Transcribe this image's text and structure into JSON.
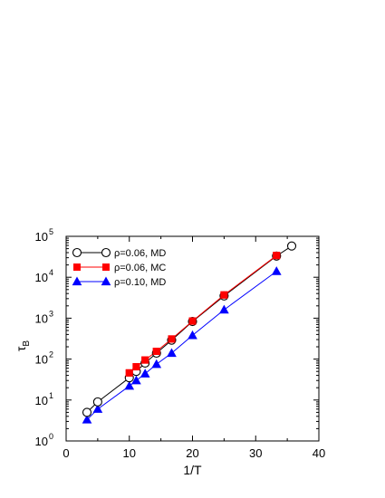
{
  "chart_data": {
    "type": "line",
    "title": "",
    "xlabel": "1/T",
    "ylabel_main": "τ",
    "ylabel_sub": "B",
    "xlim": [
      0,
      40
    ],
    "ylim": [
      1,
      100000
    ],
    "yscale": "log",
    "grid": false,
    "legend_position": "top-left",
    "x_ticks": [
      0,
      10,
      20,
      30,
      40
    ],
    "x_tick_labels": [
      "0",
      "10",
      "20",
      "30",
      "40"
    ],
    "y_ticks": [
      1,
      10,
      100,
      1000,
      10000,
      100000
    ],
    "y_tick_base": "10",
    "y_tick_exponents": [
      "0",
      "1",
      "2",
      "3",
      "4",
      "5"
    ],
    "series": [
      {
        "name": "ρ=0.06, MD",
        "color": "#000000",
        "marker": "open-circle",
        "x": [
          3.3,
          5.0,
          10.0,
          11.1,
          12.5,
          14.3,
          16.7,
          20.0,
          25.0,
          33.3,
          35.7
        ],
        "y": [
          5,
          9,
          35,
          50,
          80,
          140,
          290,
          830,
          3500,
          33000,
          58000
        ]
      },
      {
        "name": "ρ=0.06, MC",
        "color": "#ff0000",
        "marker": "filled-square",
        "x": [
          10.0,
          11.1,
          12.5,
          14.3,
          16.7,
          20.0,
          25.0,
          33.3
        ],
        "y": [
          46,
          65,
          95,
          155,
          310,
          850,
          3700,
          34000
        ]
      },
      {
        "name": "ρ=0.10, MD",
        "color": "#0000ff",
        "marker": "filled-triangle",
        "x": [
          3.3,
          5.0,
          10.0,
          11.1,
          12.5,
          14.3,
          16.7,
          20.0,
          25.0,
          33.3
        ],
        "y": [
          3.3,
          6,
          22,
          30,
          44,
          75,
          140,
          380,
          1600,
          14000
        ]
      }
    ]
  }
}
